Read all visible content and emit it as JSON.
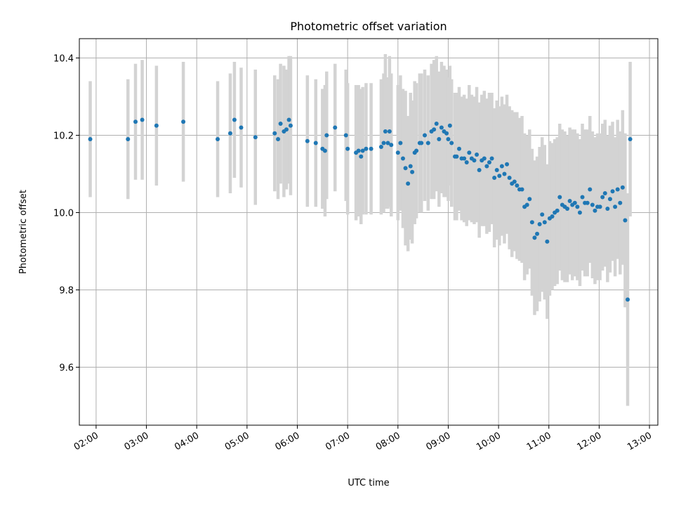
{
  "chart_data": {
    "type": "scatter",
    "title": "Photometric offset variation",
    "xlabel": "UTC time",
    "ylabel": "Photometric offset",
    "xlim": [
      "01:40",
      "13:10"
    ],
    "ylim": [
      9.45,
      10.45
    ],
    "x_ticks": [
      "02:00",
      "03:00",
      "04:00",
      "05:00",
      "06:00",
      "07:00",
      "08:00",
      "09:00",
      "10:00",
      "11:00",
      "12:00",
      "13:00"
    ],
    "y_ticks": [
      9.6,
      9.8,
      10.0,
      10.2,
      10.4
    ],
    "grid": true,
    "colors": {
      "points": "#1f77b4",
      "error_bars": "#d3d3d3",
      "grid": "#b0b0b0"
    },
    "series": [
      {
        "x": [
          "01:53",
          "02:38",
          "02:47",
          "02:55",
          "03:12",
          "03:44",
          "04:25",
          "04:40",
          "04:45",
          "04:53",
          "05:10",
          "05:33",
          "05:37",
          "05:40",
          "05:44",
          "05:47",
          "05:50",
          "05:52",
          "06:12",
          "06:22",
          "06:30",
          "06:33",
          "06:35",
          "06:45",
          "06:58",
          "07:00",
          "07:10",
          "07:13",
          "07:16",
          "07:18",
          "07:22",
          "07:28",
          "07:40",
          "07:43",
          "07:45",
          "07:48",
          "07:50",
          "07:52",
          "08:00",
          "08:03",
          "08:06",
          "08:09",
          "08:12",
          "08:15",
          "08:17",
          "08:20",
          "08:22",
          "08:26",
          "08:28",
          "08:32",
          "08:36",
          "08:40",
          "08:43",
          "08:46",
          "08:49",
          "08:52",
          "08:55",
          "08:58",
          "09:00",
          "09:02",
          "09:04",
          "09:08",
          "09:10",
          "09:13",
          "09:16",
          "09:19",
          "09:22",
          "09:25",
          "09:28",
          "09:31",
          "09:34",
          "09:37",
          "09:40",
          "09:43",
          "09:46",
          "09:49",
          "09:52",
          "09:55",
          "09:58",
          "10:01",
          "10:04",
          "10:07",
          "10:10",
          "10:13",
          "10:16",
          "10:19",
          "10:22",
          "10:25",
          "10:28",
          "10:31",
          "10:34",
          "10:37",
          "10:40",
          "10:43",
          "10:46",
          "10:49",
          "10:52",
          "10:55",
          "10:58",
          "11:01",
          "11:04",
          "11:07",
          "11:10",
          "11:13",
          "11:16",
          "11:19",
          "11:22",
          "11:25",
          "11:28",
          "11:31",
          "11:34",
          "11:37",
          "11:40",
          "11:43",
          "11:46",
          "11:49",
          "11:52",
          "11:55",
          "11:58",
          "12:01",
          "12:04",
          "12:07",
          "12:10",
          "12:13",
          "12:16",
          "12:19",
          "12:22",
          "12:25",
          "12:28",
          "12:31",
          "12:34",
          "12:37"
        ],
        "y": [
          10.19,
          10.19,
          10.235,
          10.24,
          10.225,
          10.235,
          10.19,
          10.205,
          10.24,
          10.22,
          10.195,
          10.205,
          10.19,
          10.23,
          10.21,
          10.215,
          10.24,
          10.225,
          10.185,
          10.18,
          10.165,
          10.16,
          10.2,
          10.22,
          10.2,
          10.165,
          10.155,
          10.16,
          10.145,
          10.16,
          10.165,
          10.165,
          10.17,
          10.18,
          10.21,
          10.18,
          10.21,
          10.175,
          10.155,
          10.18,
          10.14,
          10.115,
          10.075,
          10.12,
          10.105,
          10.155,
          10.16,
          10.18,
          10.18,
          10.2,
          10.18,
          10.21,
          10.215,
          10.23,
          10.19,
          10.22,
          10.21,
          10.205,
          10.19,
          10.225,
          10.18,
          10.145,
          10.145,
          10.165,
          10.14,
          10.14,
          10.13,
          10.155,
          10.14,
          10.135,
          10.15,
          10.11,
          10.135,
          10.14,
          10.12,
          10.13,
          10.14,
          10.09,
          10.11,
          10.095,
          10.12,
          10.1,
          10.125,
          10.09,
          10.075,
          10.08,
          10.07,
          10.06,
          10.06,
          10.015,
          10.02,
          10.035,
          9.975,
          9.935,
          9.945,
          9.97,
          9.995,
          9.975,
          9.925,
          9.985,
          9.99,
          10.0,
          10.005,
          10.04,
          10.02,
          10.015,
          10.01,
          10.03,
          10.02,
          10.025,
          10.015,
          10.0,
          10.04,
          10.025,
          10.025,
          10.06,
          10.02,
          10.005,
          10.015,
          10.015,
          10.04,
          10.05,
          10.01,
          10.035,
          10.055,
          10.015,
          10.06,
          10.025,
          10.065,
          9.98,
          9.775,
          10.19
        ],
        "error": [
          0.15,
          0.155,
          0.15,
          0.155,
          0.155,
          0.155,
          0.15,
          0.155,
          0.15,
          0.155,
          0.175,
          0.15,
          0.155,
          0.155,
          0.17,
          0.155,
          0.165,
          0.18,
          0.17,
          0.165,
          0.155,
          0.17,
          0.165,
          0.165,
          0.17,
          0.17,
          0.175,
          0.17,
          0.175,
          0.165,
          0.17,
          0.17,
          0.175,
          0.18,
          0.2,
          0.17,
          0.195,
          0.185,
          0.175,
          0.175,
          0.18,
          0.2,
          0.175,
          0.19,
          0.185,
          0.185,
          0.175,
          0.18,
          0.18,
          0.17,
          0.175,
          0.175,
          0.18,
          0.175,
          0.175,
          0.17,
          0.17,
          0.165,
          0.16,
          0.155,
          0.165,
          0.165,
          0.165,
          0.16,
          0.16,
          0.165,
          0.165,
          0.175,
          0.165,
          0.165,
          0.175,
          0.175,
          0.17,
          0.175,
          0.175,
          0.18,
          0.17,
          0.18,
          0.18,
          0.18,
          0.18,
          0.18,
          0.18,
          0.185,
          0.19,
          0.18,
          0.19,
          0.185,
          0.19,
          0.19,
          0.18,
          0.18,
          0.19,
          0.2,
          0.2,
          0.2,
          0.2,
          0.2,
          0.2,
          0.2,
          0.19,
          0.19,
          0.19,
          0.19,
          0.195,
          0.195,
          0.19,
          0.19,
          0.195,
          0.19,
          0.19,
          0.19,
          0.19,
          0.19,
          0.19,
          0.19,
          0.19,
          0.19,
          0.19,
          0.19,
          0.19,
          0.19,
          0.19,
          0.19,
          0.18,
          0.18,
          0.18,
          0.185,
          0.2,
          0.225,
          0.275,
          0.2
        ]
      }
    ]
  }
}
